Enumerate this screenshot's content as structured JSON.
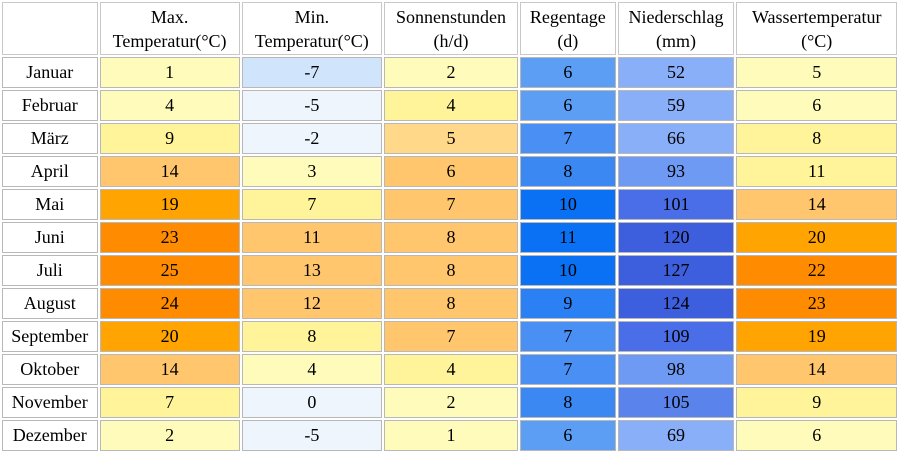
{
  "table": {
    "headers": [
      "",
      [
        "Max.",
        "Temperatur(°C)"
      ],
      [
        "Min.",
        "Temperatur(°C)"
      ],
      [
        "Sonnenstunden",
        "(h/d)"
      ],
      [
        "Regentage",
        "(d)"
      ],
      [
        "Niederschlag",
        "(mm)"
      ],
      [
        "Wassertemperatur",
        "(°C)"
      ]
    ],
    "rows": [
      {
        "month": "Januar",
        "values": [
          "1",
          "-7",
          "2",
          "6",
          "52",
          "5"
        ],
        "colors": [
          "#fffcbb",
          "#d0e4fc",
          "#fffcbb",
          "#5b9ef4",
          "#8aaff9",
          "#fffcbb"
        ]
      },
      {
        "month": "Februar",
        "values": [
          "4",
          "-5",
          "4",
          "6",
          "59",
          "6"
        ],
        "colors": [
          "#fffcbb",
          "#eef5fd",
          "#fff49a",
          "#5b9ef4",
          "#8aaff9",
          "#fffcbb"
        ]
      },
      {
        "month": "März",
        "values": [
          "9",
          "-2",
          "5",
          "7",
          "66",
          "8"
        ],
        "colors": [
          "#fff49a",
          "#eef5fd",
          "#ffd88a",
          "#4a90f4",
          "#8aaff9",
          "#fff49a"
        ]
      },
      {
        "month": "April",
        "values": [
          "14",
          "3",
          "6",
          "8",
          "93",
          "11"
        ],
        "colors": [
          "#ffc66e",
          "#fffcbb",
          "#ffc66e",
          "#3b88f2",
          "#6e9af3",
          "#fff49a"
        ]
      },
      {
        "month": "Mai",
        "values": [
          "19",
          "7",
          "7",
          "10",
          "101",
          "14"
        ],
        "colors": [
          "#ffa400",
          "#fff49a",
          "#ffc66e",
          "#0a71f5",
          "#4a6ee8",
          "#ffc66e"
        ]
      },
      {
        "month": "Juni",
        "values": [
          "23",
          "11",
          "8",
          "11",
          "120",
          "20"
        ],
        "colors": [
          "#ff8c00",
          "#ffc66e",
          "#ffc66e",
          "#0a71f5",
          "#3e5fdd",
          "#ffa400"
        ]
      },
      {
        "month": "Juli",
        "values": [
          "25",
          "13",
          "8",
          "10",
          "127",
          "22"
        ],
        "colors": [
          "#ff8c00",
          "#ffc66e",
          "#ffc66e",
          "#0a71f5",
          "#3e5fdd",
          "#ff8c00"
        ]
      },
      {
        "month": "August",
        "values": [
          "24",
          "12",
          "8",
          "9",
          "124",
          "23"
        ],
        "colors": [
          "#ff8c00",
          "#ffc66e",
          "#ffc66e",
          "#2b80f4",
          "#3e5fdd",
          "#ff8c00"
        ]
      },
      {
        "month": "September",
        "values": [
          "20",
          "8",
          "7",
          "7",
          "109",
          "19"
        ],
        "colors": [
          "#ffa400",
          "#fff49a",
          "#ffc66e",
          "#4a90f4",
          "#4a6ee8",
          "#ffa400"
        ]
      },
      {
        "month": "Oktober",
        "values": [
          "14",
          "4",
          "4",
          "7",
          "98",
          "14"
        ],
        "colors": [
          "#ffc66e",
          "#fffcbb",
          "#fff49a",
          "#4a90f4",
          "#6e9af3",
          "#ffc66e"
        ]
      },
      {
        "month": "November",
        "values": [
          "7",
          "0",
          "2",
          "8",
          "105",
          "9"
        ],
        "colors": [
          "#fff49a",
          "#eef5fd",
          "#fffcbb",
          "#3b88f2",
          "#5a84ec",
          "#fff49a"
        ]
      },
      {
        "month": "Dezember",
        "values": [
          "2",
          "-5",
          "1",
          "6",
          "69",
          "6"
        ],
        "colors": [
          "#fffcbb",
          "#eef5fd",
          "#fffcbb",
          "#5b9ef4",
          "#8aaff9",
          "#fffcbb"
        ]
      }
    ]
  }
}
